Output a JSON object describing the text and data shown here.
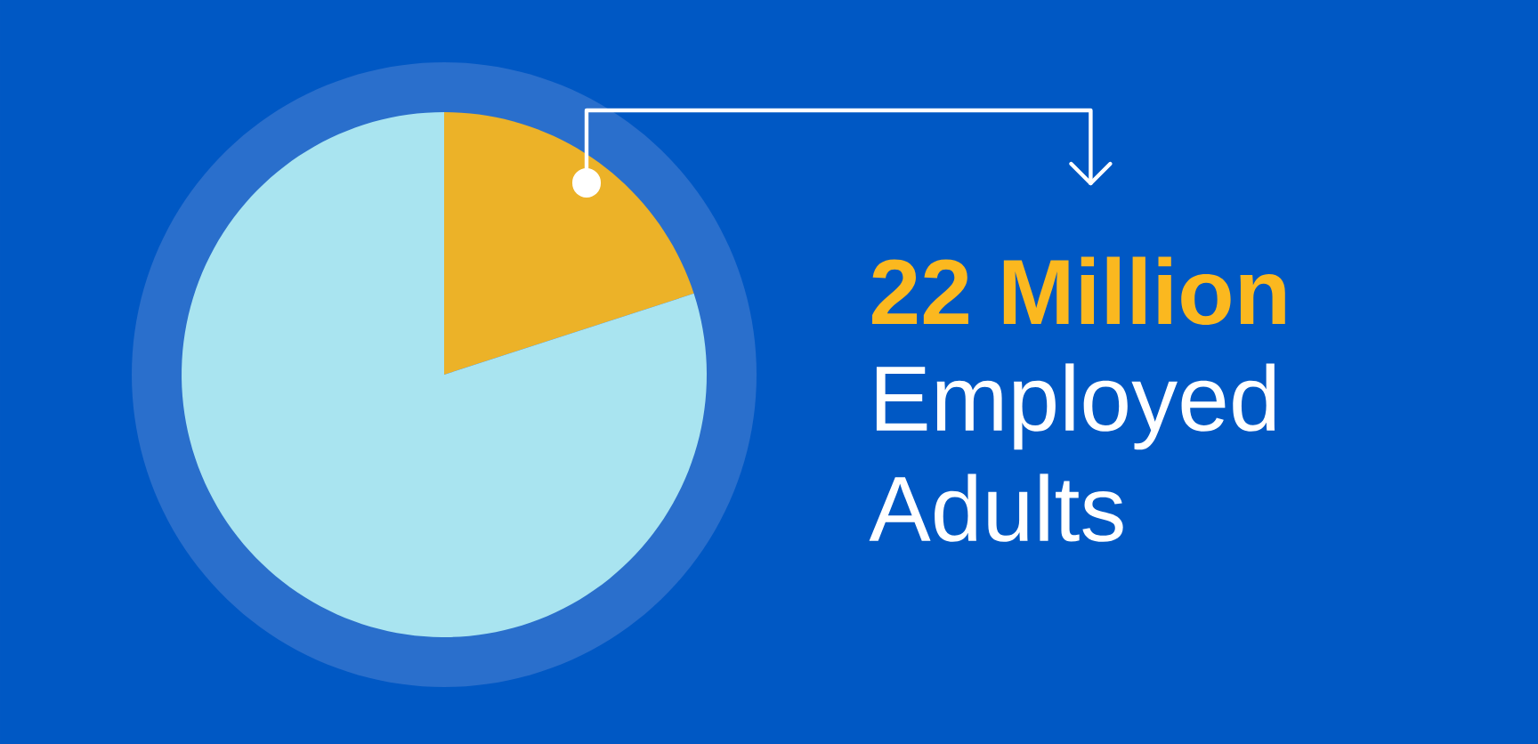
{
  "chart_data": {
    "type": "pie",
    "categories": [
      null,
      null
    ],
    "values": [
      20,
      80
    ],
    "colors": [
      "#ecb228",
      "#a9e4f0"
    ],
    "annotations": [
      "22 Million",
      "Employed Adults"
    ]
  }
}
